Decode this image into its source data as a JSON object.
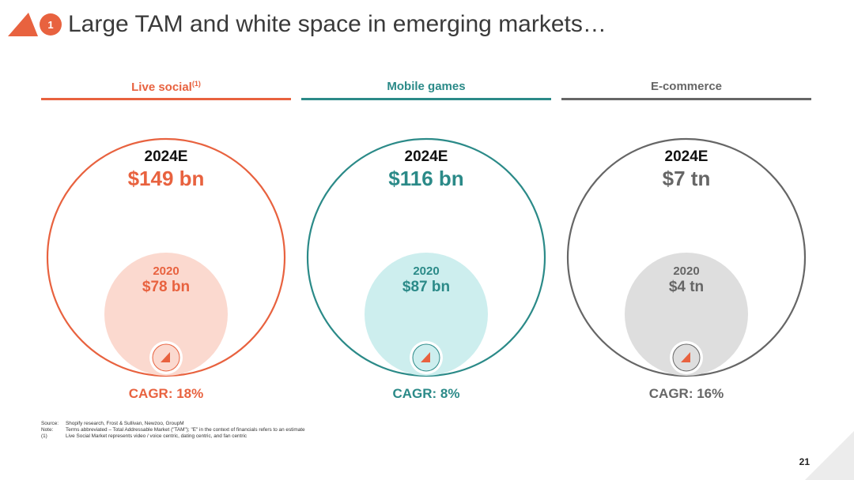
{
  "header": {
    "section_number": "1",
    "title": "Large TAM and white space in emerging markets…"
  },
  "chart_data": {
    "type": "nested-bubble",
    "title": "Large TAM and white space in emerging markets…",
    "series": [
      {
        "name": "Live social",
        "superscript": "(1)",
        "color": "#e8623f",
        "fill": "#fbd9cf",
        "year_big": "2024E",
        "label_big": "$149 bn",
        "value_big": 149,
        "year_small": "2020",
        "label_small": "$78 bn",
        "value_small": 78,
        "cagr": "CAGR: 18%"
      },
      {
        "name": "Mobile games",
        "superscript": "",
        "color": "#2b8a88",
        "fill": "#cdeeee",
        "year_big": "2024E",
        "label_big": "$116 bn",
        "value_big": 116,
        "year_small": "2020",
        "label_small": "$87 bn",
        "value_small": 87,
        "cagr": "CAGR: 8%"
      },
      {
        "name": "E-commerce",
        "superscript": "",
        "color": "#666666",
        "fill": "#dedede",
        "year_big": "2024E",
        "label_big": "$7 tn",
        "value_big": 7,
        "year_small": "2020",
        "label_small": "$4 tn",
        "value_small": 4,
        "cagr": "CAGR: 16%"
      }
    ]
  },
  "notes": [
    {
      "label": "Source:",
      "text": "Shopify research, Frost & Sullivan, Newzoo, GroupM"
    },
    {
      "label": "Note:",
      "text": "Terms abbreviated – Total Addressable Market (\"TAM\"); \"E\" in the context of financials refers to an estimate"
    },
    {
      "label": "(1)",
      "text": "Live Social Market represents video / voice centric, dating centric, and fan centric"
    }
  ],
  "page_number": "21",
  "colors": {
    "accent": "#e8623f"
  }
}
